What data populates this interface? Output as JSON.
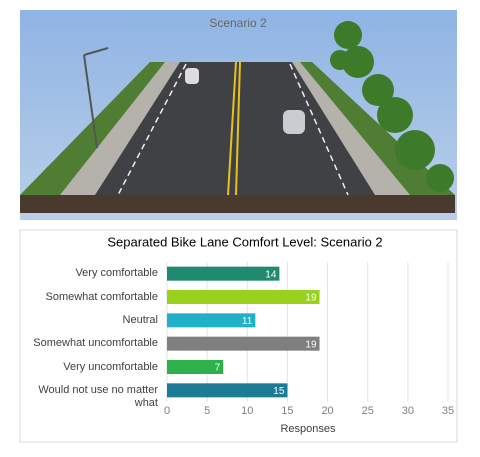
{
  "image": {
    "caption": "Scenario 2"
  },
  "chart_data": {
    "type": "bar",
    "orientation": "horizontal",
    "title": "Separated Bike Lane Comfort Level: Scenario 2",
    "categories": [
      "Very comfortable",
      "Somewhat comfortable",
      "Neutral",
      "Somewhat uncomfortable",
      "Very uncomfortable",
      "Would not use no matter what"
    ],
    "values": [
      14,
      19,
      11,
      19,
      7,
      15
    ],
    "colors": [
      "#1f8a6f",
      "#9ad11e",
      "#21b1c6",
      "#7f7f7f",
      "#2db24b",
      "#1c7c97"
    ],
    "xlabel": "Responses",
    "xlim": [
      0,
      35
    ],
    "xticks": [
      0,
      5,
      10,
      15,
      20,
      25,
      30,
      35
    ],
    "grid": true
  }
}
